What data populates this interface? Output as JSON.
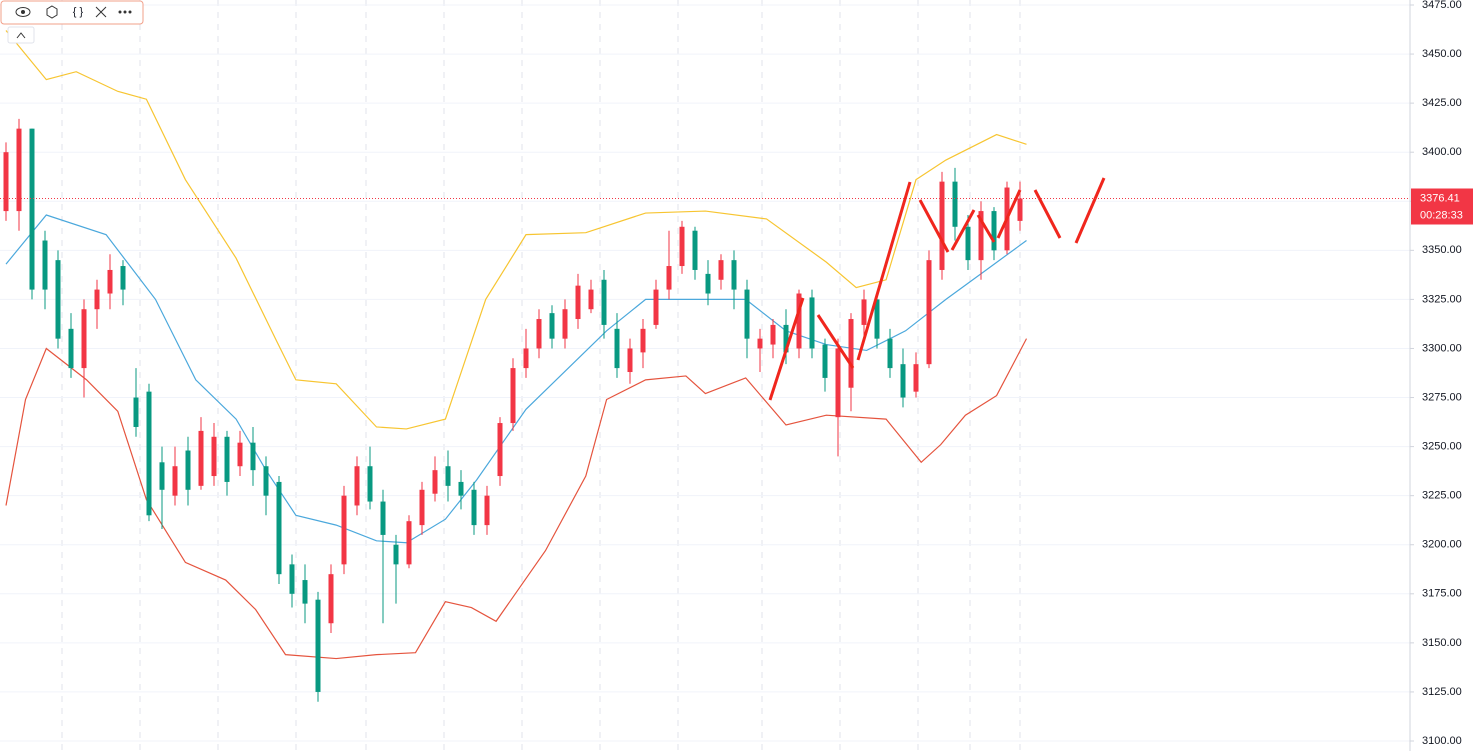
{
  "chart_data": {
    "type": "candlestick",
    "open": [
      3370,
      3370,
      3412,
      3355,
      3345,
      3310,
      3290,
      3320,
      3328,
      3342,
      3275,
      3278,
      3242,
      3225,
      3248,
      3230,
      3235,
      3255,
      3240,
      3252,
      3240,
      3232,
      3190,
      3182,
      3172,
      3160,
      3190,
      3220,
      3240,
      3222,
      3200,
      3190,
      3210,
      3226,
      3240,
      3232,
      3228,
      3210,
      3235,
      3262,
      3290,
      3300,
      3318,
      3305,
      3315,
      3320,
      3335,
      3310,
      3288,
      3298,
      3312,
      3330,
      3342,
      3360,
      3338,
      3335,
      3345,
      3330,
      3300,
      3302,
      3312,
      3300,
      3326,
      3302,
      3265,
      3280,
      3312,
      3325,
      3305,
      3292,
      3278,
      3292,
      3340,
      3385,
      3362,
      3345,
      3370,
      3350,
      3365
    ],
    "high": [
      3405,
      3417,
      3412,
      3360,
      3350,
      3318,
      3325,
      3335,
      3348,
      3345,
      3290,
      3282,
      3250,
      3250,
      3255,
      3265,
      3262,
      3258,
      3258,
      3260,
      3245,
      3235,
      3195,
      3190,
      3176,
      3190,
      3230,
      3245,
      3250,
      3228,
      3205,
      3215,
      3232,
      3245,
      3248,
      3238,
      3232,
      3230,
      3265,
      3295,
      3310,
      3320,
      3322,
      3325,
      3338,
      3335,
      3340,
      3318,
      3305,
      3315,
      3335,
      3360,
      3365,
      3362,
      3345,
      3348,
      3350,
      3335,
      3310,
      3315,
      3320,
      3330,
      3330,
      3305,
      3305,
      3318,
      3330,
      3328,
      3310,
      3300,
      3298,
      3350,
      3390,
      3392,
      3368,
      3375,
      3372,
      3385,
      3385
    ],
    "low": [
      3365,
      3360,
      3325,
      3320,
      3300,
      3285,
      3275,
      3310,
      3320,
      3322,
      3255,
      3212,
      3208,
      3220,
      3220,
      3228,
      3230,
      3225,
      3235,
      3230,
      3215,
      3180,
      3168,
      3160,
      3120,
      3155,
      3185,
      3215,
      3218,
      3160,
      3170,
      3188,
      3205,
      3222,
      3222,
      3218,
      3205,
      3205,
      3230,
      3258,
      3285,
      3295,
      3300,
      3300,
      3310,
      3318,
      3305,
      3285,
      3282,
      3290,
      3310,
      3325,
      3338,
      3335,
      3322,
      3330,
      3320,
      3295,
      3288,
      3295,
      3292,
      3295,
      3295,
      3278,
      3245,
      3268,
      3305,
      3300,
      3285,
      3270,
      3275,
      3290,
      3335,
      3355,
      3340,
      3335,
      3345,
      3348,
      3360
    ],
    "close": [
      3400,
      3412,
      3330,
      3330,
      3305,
      3290,
      3320,
      3330,
      3340,
      3330,
      3260,
      3215,
      3228,
      3240,
      3228,
      3258,
      3255,
      3232,
      3252,
      3238,
      3225,
      3185,
      3175,
      3170,
      3125,
      3185,
      3225,
      3240,
      3222,
      3205,
      3190,
      3212,
      3228,
      3238,
      3230,
      3225,
      3210,
      3225,
      3262,
      3290,
      3300,
      3315,
      3305,
      3320,
      3332,
      3330,
      3312,
      3290,
      3300,
      3310,
      3330,
      3342,
      3362,
      3340,
      3328,
      3345,
      3330,
      3305,
      3305,
      3312,
      3298,
      3328,
      3300,
      3285,
      3300,
      3315,
      3325,
      3305,
      3290,
      3275,
      3292,
      3345,
      3385,
      3362,
      3345,
      3370,
      3350,
      3382,
      3376.41
    ],
    "up_color": "#f23645",
    "down_color": "#089981",
    "series": [
      {
        "color": "#f7c531",
        "x": [
          0,
          3.1,
          5.4,
          8.6,
          10.8,
          13.8,
          17.7,
          20.8,
          22.3,
          25.4,
          28.5,
          30.8,
          33.8,
          36.9,
          40,
          44.6,
          49.2,
          53.8,
          58.5,
          63.1,
          65.4,
          67.7,
          70,
          72.3,
          76.2,
          78.5
        ],
        "values": [
          3462,
          3437,
          3441,
          3431,
          3427,
          3386,
          3346,
          3304,
          3284,
          3282,
          3260,
          3259,
          3264,
          3325,
          3358,
          3359,
          3369,
          3370,
          3366,
          3344,
          3331,
          3335,
          3386,
          3396,
          3409,
          3404
        ]
      },
      {
        "color": "#4ba8dc",
        "x": [
          0,
          3.1,
          7.7,
          11.5,
          14.6,
          17.7,
          20,
          22.3,
          25.4,
          28.5,
          30.8,
          33.8,
          36.2,
          40,
          43.1,
          46.2,
          49.2,
          53.8,
          56.9,
          60,
          63.1,
          66.2,
          69.2,
          72.3,
          75.4,
          78.5
        ],
        "values": [
          3343,
          3368,
          3358,
          3325,
          3284,
          3264,
          3238,
          3215,
          3210,
          3202,
          3201,
          3213,
          3233,
          3269,
          3289,
          3309,
          3325,
          3325,
          3325,
          3309,
          3302,
          3299,
          3309,
          3325,
          3340,
          3355
        ]
      },
      {
        "color": "#e5543e",
        "x": [
          0,
          1.5,
          3.1,
          6.2,
          8.6,
          10.8,
          13.8,
          16.9,
          19.2,
          21.5,
          25.4,
          28.5,
          31.5,
          33.8,
          35.8,
          37.7,
          41.5,
          44.6,
          46.2,
          49.2,
          52.3,
          53.8,
          56.9,
          60,
          63.1,
          67.7,
          70.4,
          71.9,
          73.8,
          76.2,
          78.5
        ],
        "values": [
          3220,
          3274,
          3300,
          3284,
          3268,
          3223,
          3191,
          3182,
          3167,
          3144,
          3142,
          3144,
          3145,
          3171,
          3168,
          3161,
          3197,
          3235,
          3274,
          3284,
          3286,
          3277,
          3285,
          3261,
          3266,
          3264,
          3242,
          3251,
          3266,
          3276,
          3305
        ]
      }
    ],
    "ylim": [
      3100,
      3475
    ],
    "yticks": [
      {
        "value": 3100,
        "label": "3100.00"
      },
      {
        "value": 3125,
        "label": "3125.00"
      },
      {
        "value": 3150,
        "label": "3150.00"
      },
      {
        "value": 3175,
        "label": "3175.00"
      },
      {
        "value": 3200,
        "label": "3200.00"
      },
      {
        "value": 3225,
        "label": "3225.00"
      },
      {
        "value": 3250,
        "label": "3250.00"
      },
      {
        "value": 3275,
        "label": "3275.00"
      },
      {
        "value": 3300,
        "label": "3300.00"
      },
      {
        "value": 3325,
        "label": "3325.00"
      },
      {
        "value": 3350,
        "label": "3350.00"
      },
      {
        "value": 3375,
        "label": "3375.00"
      },
      {
        "value": 3400,
        "label": "3400.00"
      },
      {
        "value": 3425,
        "label": "3425.00"
      },
      {
        "value": 3450,
        "label": "3450.00"
      },
      {
        "value": 3475,
        "label": "3475.00"
      }
    ],
    "grid": true,
    "last_price": 3376.41,
    "countdown": "00:28:33"
  }
}
